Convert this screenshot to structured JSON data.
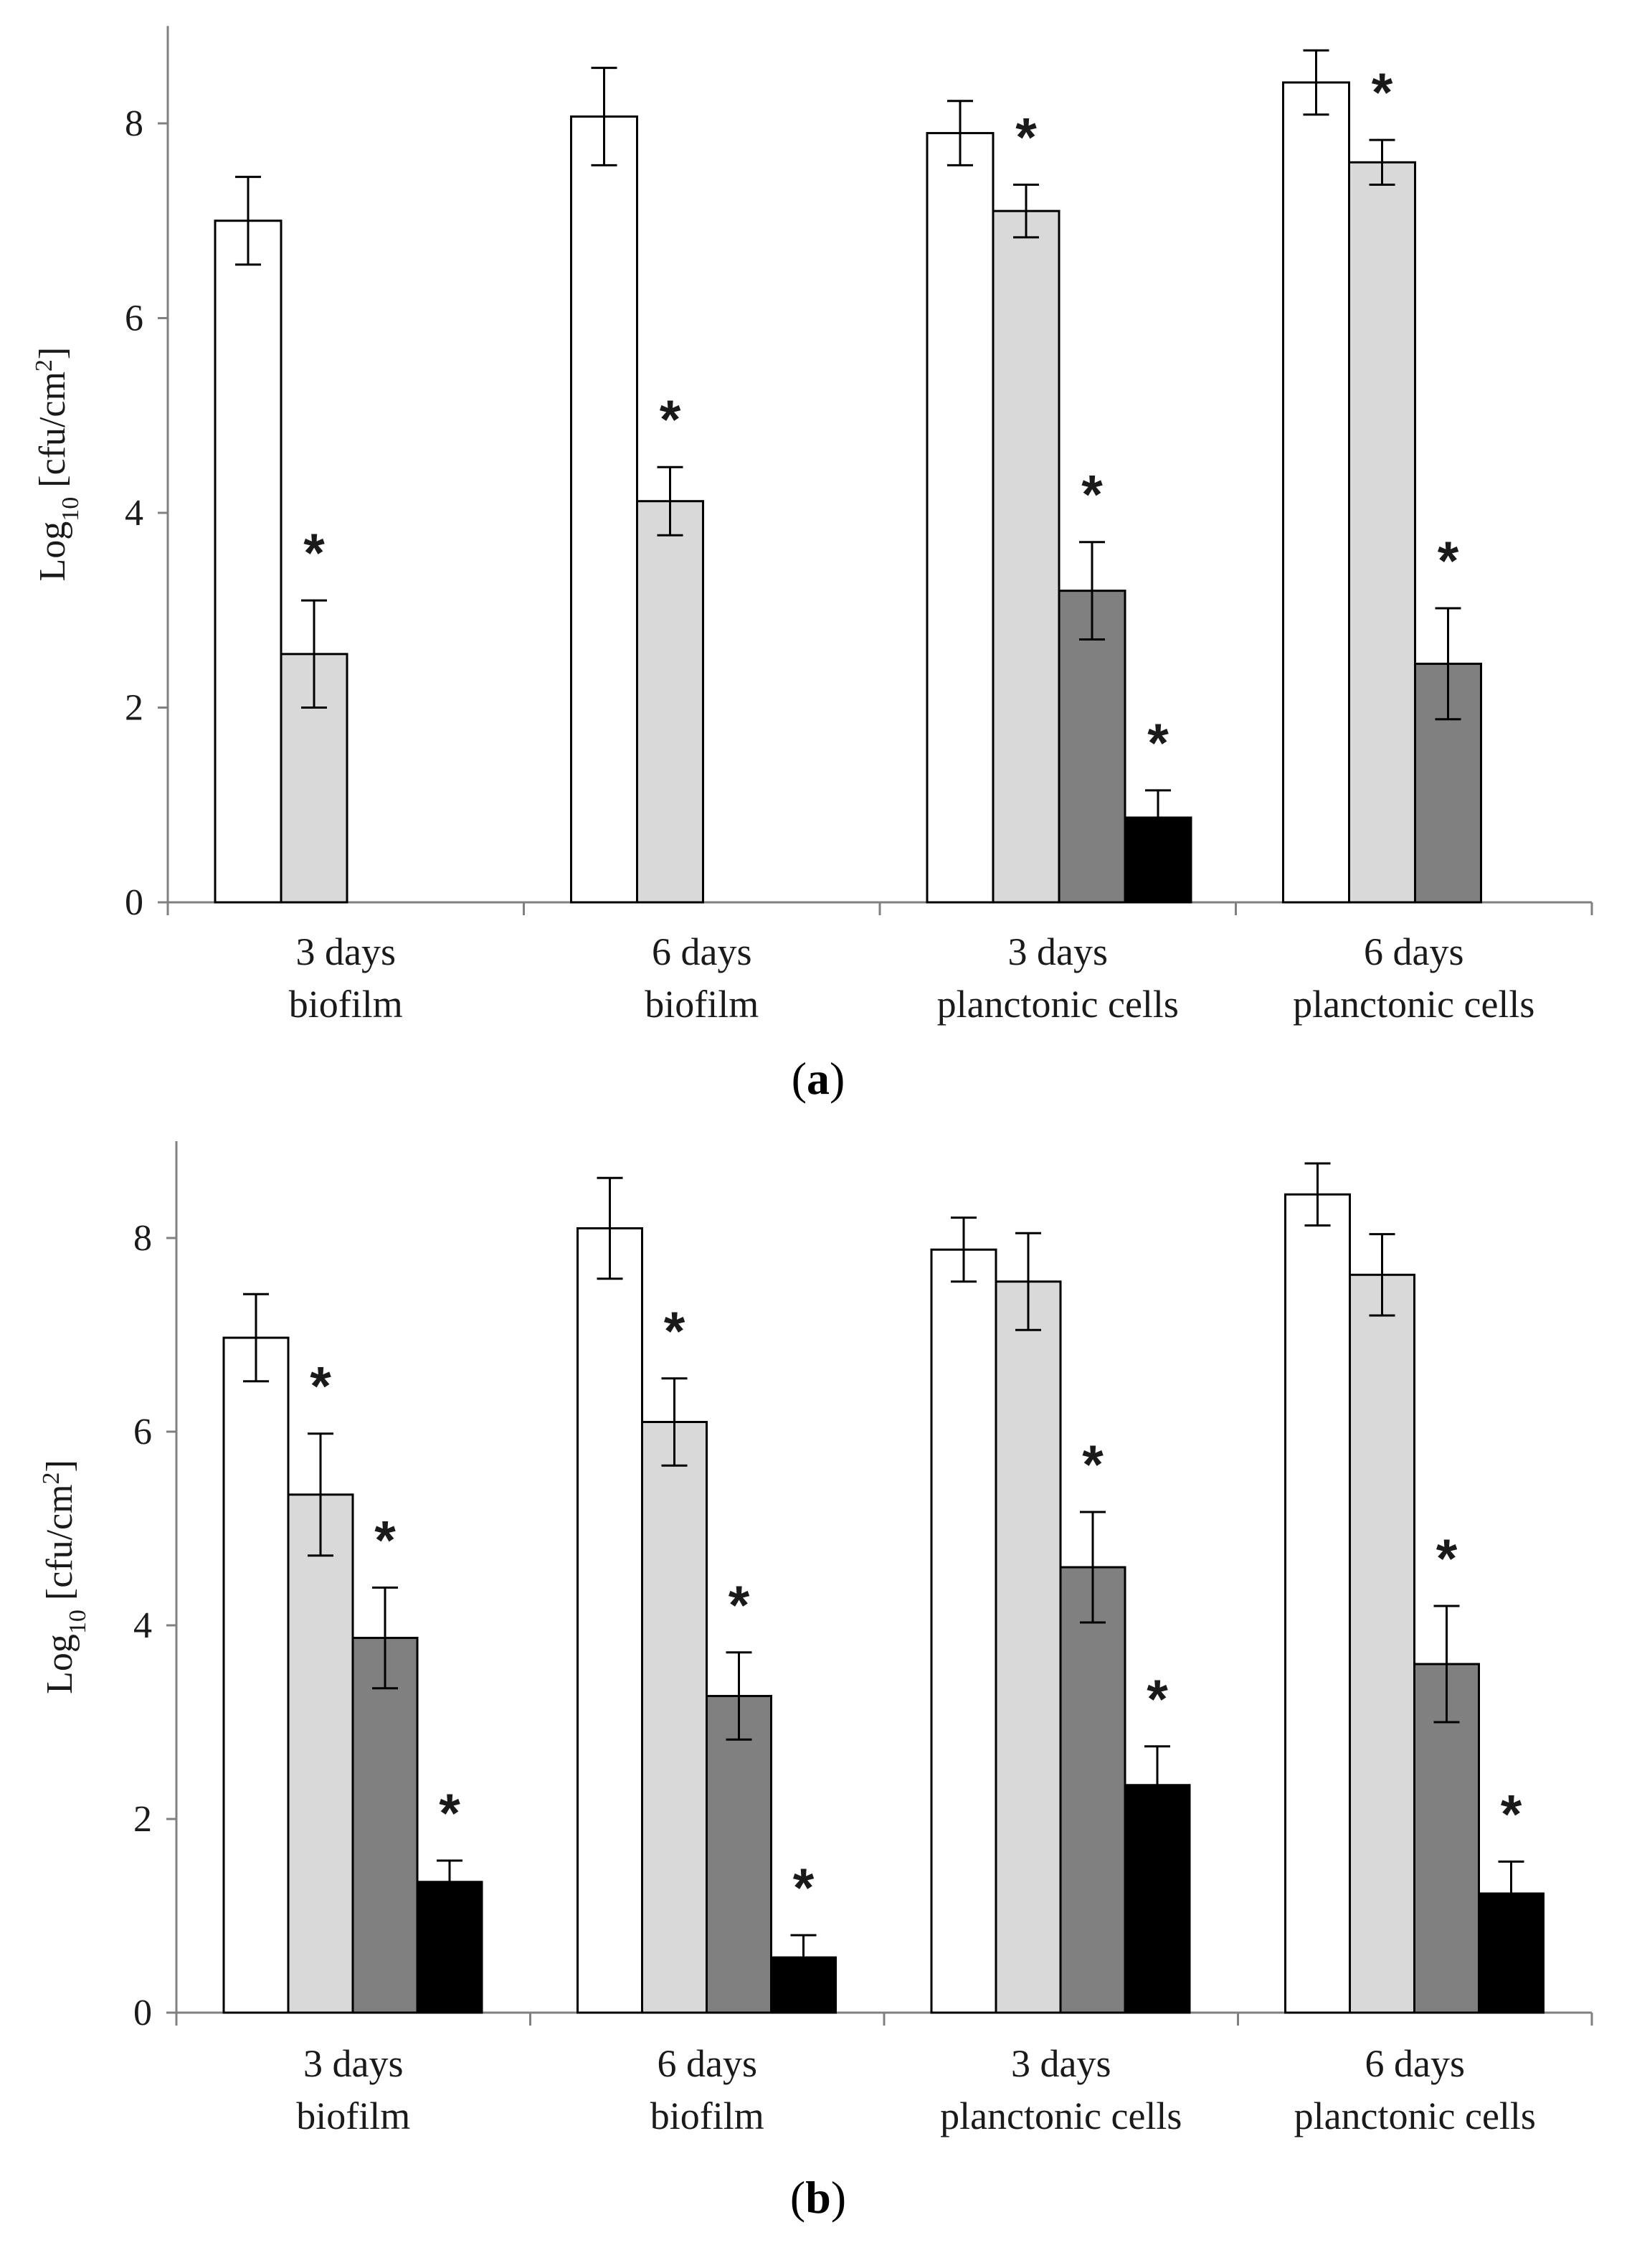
{
  "colors": {
    "bar_fill": [
      "#ffffff",
      "#d9d9d9",
      "#808080",
      "#000000"
    ],
    "stroke": "#000000",
    "axis": "#808080"
  },
  "chart_data": [
    {
      "type": "bar",
      "panel_label": "a",
      "ylabel_main": "Log",
      "ylabel_sub": "10",
      "ylabel_unit": "[cfu/cm",
      "ylabel_sup": "2",
      "ylabel_close": "]",
      "ylim": [
        0,
        9
      ],
      "yticks": [
        0,
        2,
        4,
        6,
        8
      ],
      "categories": [
        [
          "3 days",
          "biofilm"
        ],
        [
          "6 days",
          "biofilm"
        ],
        [
          "3 days",
          "planctonic cells"
        ],
        [
          "6 days",
          "planctonic cells"
        ]
      ],
      "series": [
        {
          "values": [
            7.0,
            8.07,
            7.9,
            8.42
          ],
          "errors": [
            0.45,
            0.5,
            0.33,
            0.33
          ],
          "significant": [
            false,
            false,
            false,
            false
          ]
        },
        {
          "values": [
            2.55,
            4.12,
            7.1,
            7.6
          ],
          "errors": [
            0.55,
            0.35,
            0.27,
            0.23
          ],
          "significant": [
            true,
            true,
            true,
            true
          ]
        },
        {
          "values": [
            null,
            null,
            3.2,
            2.45
          ],
          "errors": [
            null,
            null,
            0.5,
            0.57
          ],
          "significant": [
            false,
            false,
            true,
            true
          ]
        },
        {
          "values": [
            null,
            null,
            0.87,
            null
          ],
          "errors": [
            null,
            null,
            0.28,
            null
          ],
          "significant": [
            false,
            false,
            true,
            false
          ]
        }
      ],
      "star_label": "*"
    },
    {
      "type": "bar",
      "panel_label": "b",
      "ylabel_main": "Log",
      "ylabel_sub": "10",
      "ylabel_unit": "[cfu/cm",
      "ylabel_sup": "2",
      "ylabel_close": "]",
      "ylim": [
        0,
        9
      ],
      "yticks": [
        0,
        2,
        4,
        6,
        8
      ],
      "categories": [
        [
          "3 days",
          "biofilm"
        ],
        [
          "6 days",
          "biofilm"
        ],
        [
          "3 days",
          "planctonic cells"
        ],
        [
          "6 days",
          "planctonic cells"
        ]
      ],
      "series": [
        {
          "values": [
            6.97,
            8.1,
            7.88,
            8.45
          ],
          "errors": [
            0.45,
            0.52,
            0.33,
            0.32
          ],
          "significant": [
            false,
            false,
            false,
            false
          ]
        },
        {
          "values": [
            5.35,
            6.1,
            7.55,
            7.62
          ],
          "errors": [
            0.63,
            0.45,
            0.5,
            0.42
          ],
          "significant": [
            true,
            true,
            false,
            false
          ]
        },
        {
          "values": [
            3.87,
            3.27,
            4.6,
            3.6
          ],
          "errors": [
            0.52,
            0.45,
            0.57,
            0.6
          ],
          "significant": [
            true,
            true,
            true,
            true
          ]
        },
        {
          "values": [
            1.35,
            0.57,
            2.35,
            1.23
          ],
          "errors": [
            0.22,
            0.23,
            0.4,
            0.33
          ],
          "significant": [
            true,
            true,
            true,
            true
          ]
        }
      ],
      "star_label": "*"
    }
  ]
}
